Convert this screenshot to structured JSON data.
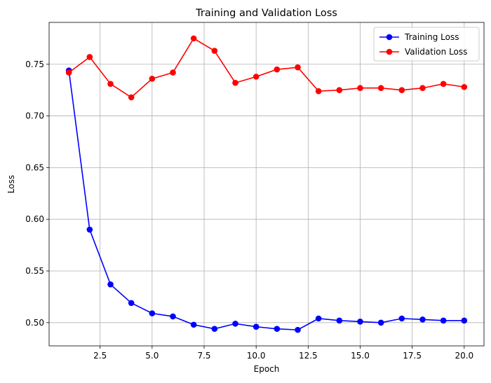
{
  "chart_data": {
    "type": "line",
    "title": "Training and Validation Loss",
    "xlabel": "Epoch",
    "ylabel": "Loss",
    "xlim": [
      0.05,
      20.95
    ],
    "ylim": [
      0.4775,
      0.7905
    ],
    "xticks": [
      2.5,
      5.0,
      7.5,
      10.0,
      12.5,
      15.0,
      17.5,
      20.0
    ],
    "xtick_labels": [
      "2.5",
      "5.0",
      "7.5",
      "10.0",
      "12.5",
      "15.0",
      "17.5",
      "20.0"
    ],
    "yticks": [
      0.5,
      0.55,
      0.6,
      0.65,
      0.7,
      0.75
    ],
    "ytick_labels": [
      "0.50",
      "0.55",
      "0.60",
      "0.65",
      "0.70",
      "0.75"
    ],
    "grid": true,
    "legend_position": "top-right",
    "x": [
      1,
      2,
      3,
      4,
      5,
      6,
      7,
      8,
      9,
      10,
      11,
      12,
      13,
      14,
      15,
      16,
      17,
      18,
      19,
      20
    ],
    "series": [
      {
        "name": "Training Loss",
        "color": "#0000ff",
        "marker": "circle",
        "values": [
          0.744,
          0.59,
          0.537,
          0.519,
          0.509,
          0.506,
          0.498,
          0.494,
          0.499,
          0.496,
          0.494,
          0.493,
          0.504,
          0.502,
          0.501,
          0.5,
          0.504,
          0.503,
          0.502,
          0.502
        ]
      },
      {
        "name": "Validation Loss",
        "color": "#ff0000",
        "marker": "circle",
        "values": [
          0.742,
          0.757,
          0.731,
          0.718,
          0.736,
          0.742,
          0.775,
          0.763,
          0.732,
          0.738,
          0.745,
          0.747,
          0.724,
          0.725,
          0.727,
          0.727,
          0.725,
          0.727,
          0.731,
          0.728
        ]
      }
    ]
  }
}
